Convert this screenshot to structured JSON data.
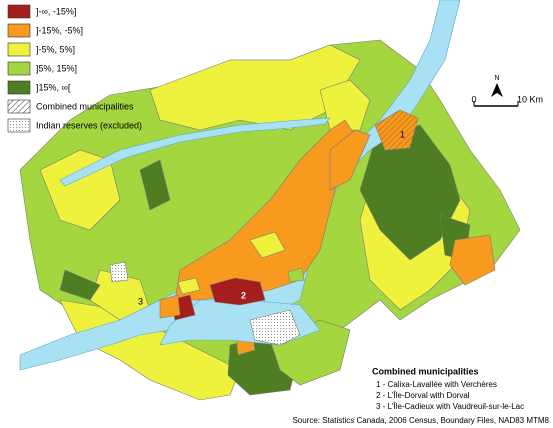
{
  "legend": {
    "items": [
      "]-∞, -15%]",
      "]-15%, -5%]",
      "]-5%, 5%]",
      "]5%, 15%]",
      "]15%, ∞["
    ],
    "combined": "Combined municipalities",
    "reserves": "Indian reserves (excluded)"
  },
  "north": "N",
  "scale": {
    "start": "0",
    "end": "10 Km"
  },
  "map_labels": [
    "1",
    "2",
    "3"
  ],
  "notes": {
    "title": "Combined municipalities",
    "items": [
      "1 - Calixa-Lavallée with Verchères",
      "2 - L'Île-Dorval with Dorval",
      "3 - L'Île-Cadieux with Vaudreuil-sur-le-Lac"
    ]
  },
  "source": "Source: Statistics Canada, 2006 Census, Boundary Files, NAD83 MTM8"
}
